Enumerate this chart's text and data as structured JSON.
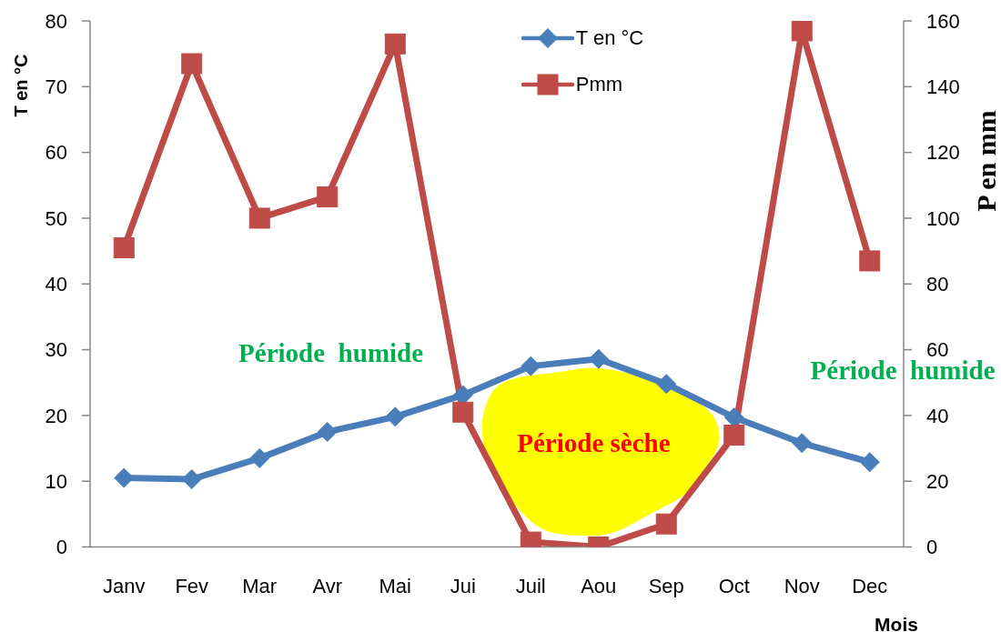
{
  "chart_data": {
    "type": "line",
    "categories": [
      "Janv",
      "Fev",
      "Mar",
      "Avr",
      "Mai",
      "Jui",
      "Juil",
      "Aou",
      "Sep",
      "Oct",
      "Nov",
      "Dec"
    ],
    "series": [
      {
        "name": "T en °C",
        "color": "#4a7ebb",
        "marker": "diamond",
        "values": [
          10.5,
          10.3,
          13.5,
          17.5,
          19.8,
          23.1,
          27.5,
          28.6,
          24.8,
          19.7,
          15.8,
          12.9
        ]
      },
      {
        "name": "Pmm",
        "color": "#be4b48",
        "marker": "square",
        "axis": "y2",
        "values": [
          91,
          147,
          100,
          106.5,
          153,
          41,
          1.5,
          0,
          7,
          34,
          157,
          87
        ]
      }
    ],
    "xlabel": "Mois",
    "ylabel": "T en °C",
    "y2label": "P en mm",
    "ylim": [
      0,
      80
    ],
    "yticks": [
      0,
      10,
      20,
      30,
      40,
      50,
      60,
      70,
      80
    ],
    "y2lim": [
      0,
      160
    ],
    "y2ticks": [
      0,
      20,
      40,
      60,
      80,
      100,
      120,
      140,
      160
    ],
    "legend": "top",
    "annotations": [
      "Période  humide",
      "Période  humide",
      "Période sèche"
    ]
  }
}
